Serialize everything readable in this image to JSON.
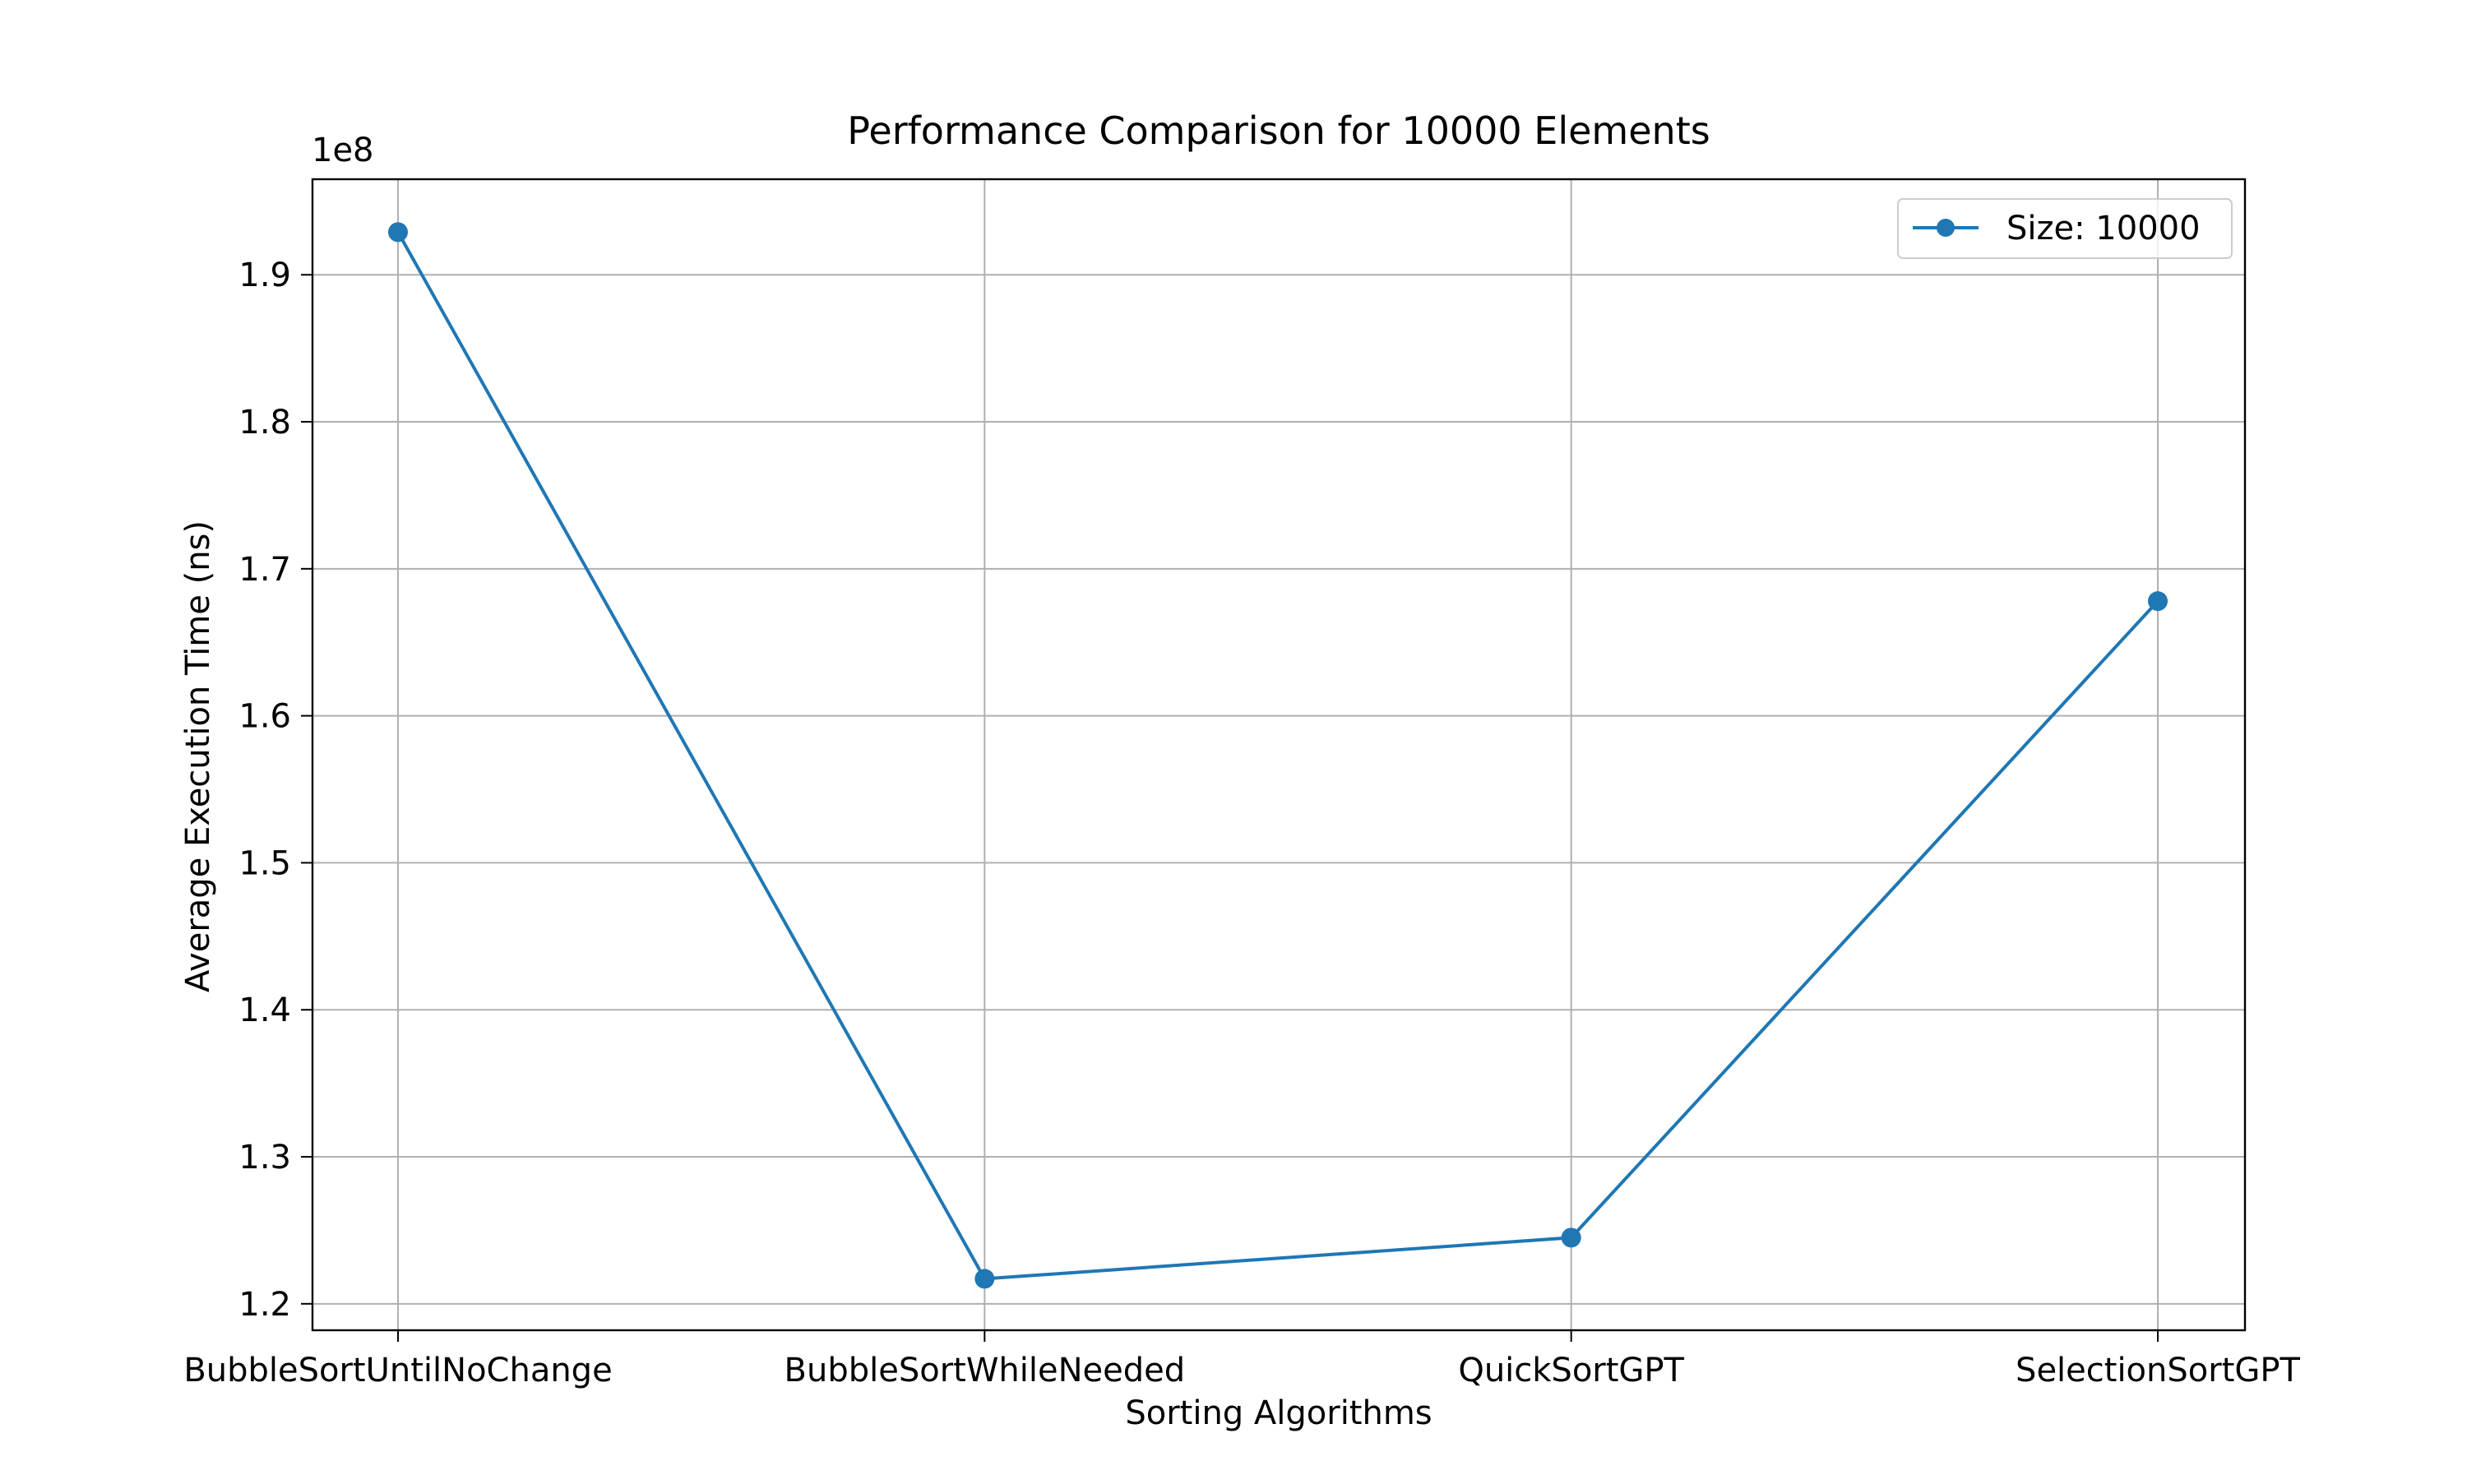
{
  "chart_data": {
    "type": "line",
    "title": "Performance Comparison for 10000 Elements",
    "xlabel": "Sorting Algorithms",
    "ylabel": "Average Execution Time (ns)",
    "y_offset_label": "1e8",
    "categories": [
      "BubbleSortUntilNoChange",
      "BubbleSortWhileNeeded",
      "QuickSortGPT",
      "SelectionSortGPT"
    ],
    "series": [
      {
        "name": "Size: 10000",
        "color": "#1f77b4",
        "marker": "circle",
        "values": [
          1.929,
          1.217,
          1.245,
          1.678
        ]
      }
    ],
    "ylim": [
      1.182,
      1.965
    ],
    "yticks": [
      1.2,
      1.3,
      1.4,
      1.5,
      1.6,
      1.7,
      1.8,
      1.9
    ],
    "ytick_labels": [
      "1.2",
      "1.3",
      "1.4",
      "1.5",
      "1.6",
      "1.7",
      "1.8",
      "1.9"
    ],
    "grid": true,
    "legend_position": "top-right"
  }
}
